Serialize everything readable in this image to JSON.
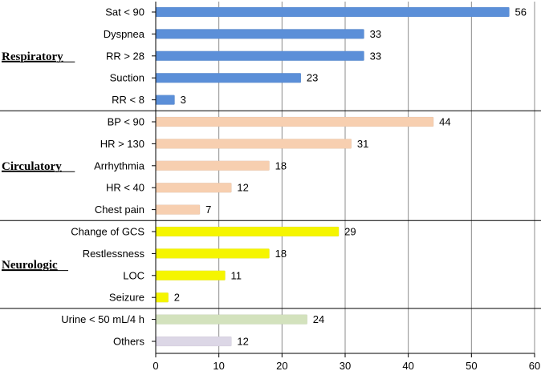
{
  "chart_data": {
    "type": "bar",
    "orientation": "horizontal",
    "xlim": [
      0,
      60
    ],
    "x_ticks": [
      "0",
      "10",
      "20",
      "30",
      "40",
      "50",
      "60"
    ],
    "grid": true,
    "groups": [
      {
        "name": "Respiratory",
        "color": "#5b8fd8",
        "categories": [
          "Sat < 90",
          "Dyspnea",
          "RR > 28",
          "Suction",
          "RR < 8"
        ],
        "values": [
          56,
          33,
          33,
          23,
          3
        ]
      },
      {
        "name": "Circulatory",
        "color": "#f7cfb0",
        "categories": [
          "BP < 90",
          "HR > 130",
          "Arrhythmia",
          "HR < 40",
          "Chest pain"
        ],
        "values": [
          44,
          31,
          18,
          12,
          7
        ]
      },
      {
        "name": "Neurologic",
        "color": "#f5f500",
        "categories": [
          "Change of GCS",
          "Restlessness",
          "LOC",
          "Seizure"
        ],
        "values": [
          29,
          18,
          11,
          2
        ]
      },
      {
        "name": "",
        "color": "#d3e2bd",
        "categories": [
          "Urine < 50 mL/4 h"
        ],
        "values": [
          24
        ]
      },
      {
        "name": "",
        "color": "#dcd7e6",
        "categories": [
          "Others"
        ],
        "values": [
          12
        ]
      }
    ]
  }
}
